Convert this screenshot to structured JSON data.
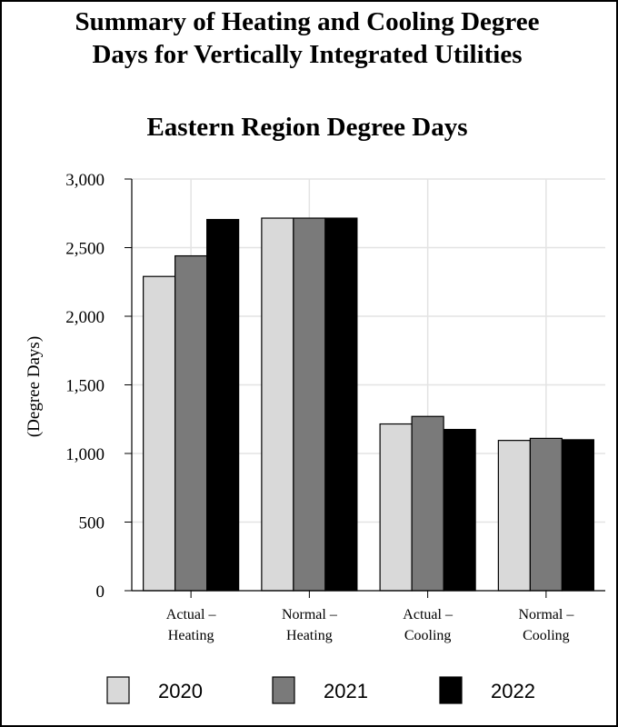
{
  "title_lines": [
    "Summary of Heating and Cooling Degree",
    "Days for Vertically Integrated Utilities"
  ],
  "subtitle": "Eastern Region Degree Days",
  "chart_data": {
    "type": "bar",
    "title": "Eastern Region Degree Days",
    "ylabel": "(Degree Days)",
    "xlabel": "",
    "ylim": [
      0,
      3000
    ],
    "yticks": [
      0,
      500,
      1000,
      1500,
      2000,
      2500,
      3000
    ],
    "ytick_labels": [
      "0",
      "500",
      "1,000",
      "1,500",
      "2,000",
      "2,500",
      "3,000"
    ],
    "categories": [
      [
        "Actual –",
        "Heating"
      ],
      [
        "Normal –",
        "Heating"
      ],
      [
        "Actual –",
        "Cooling"
      ],
      [
        "Normal –",
        "Cooling"
      ]
    ],
    "series": [
      {
        "name": "2020",
        "color": "#d9d9d9",
        "values": [
          2290,
          2715,
          1215,
          1095
        ]
      },
      {
        "name": "2021",
        "color": "#7a7a7a",
        "values": [
          2440,
          2715,
          1270,
          1110
        ]
      },
      {
        "name": "2022",
        "color": "#000000",
        "values": [
          2705,
          2715,
          1175,
          1100
        ]
      }
    ],
    "grid": true,
    "legend_position": "bottom"
  }
}
